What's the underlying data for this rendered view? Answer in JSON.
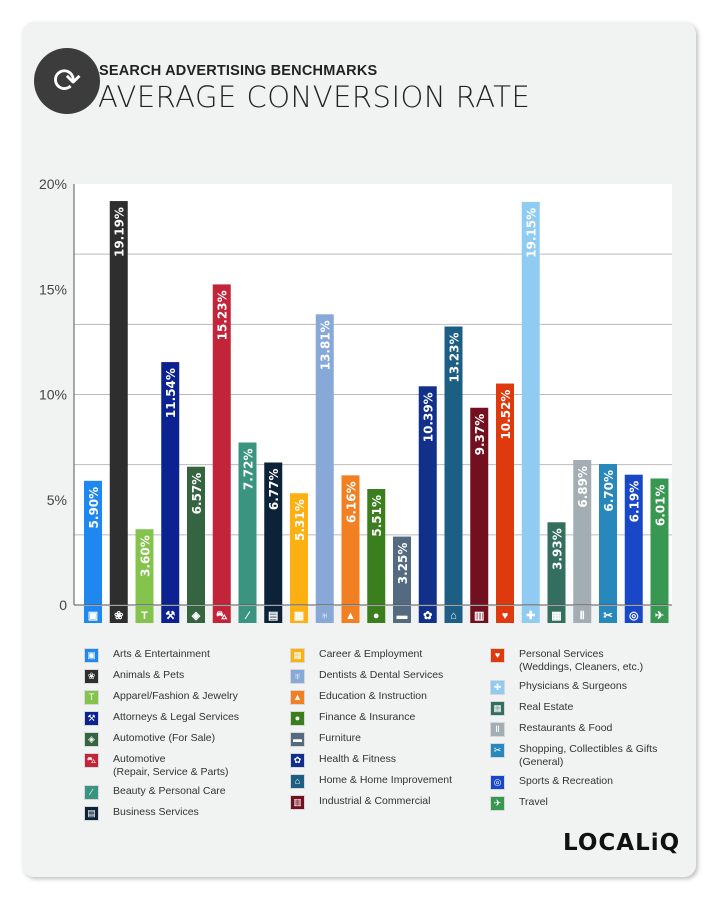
{
  "header": {
    "subtitle": "SEARCH ADVERTISING BENCHMARKS",
    "title": "AVERAGE CONVERSION RATE"
  },
  "brand": "LOCALiQ",
  "chart_data": {
    "type": "bar",
    "title": "AVERAGE CONVERSION RATE",
    "ylabel": "",
    "xlabel": "",
    "ylim": [
      0,
      20
    ],
    "yticks": [
      0,
      5,
      10,
      15,
      20
    ],
    "ytick_labels": [
      "0",
      "5%",
      "10%",
      "15%",
      "20%"
    ],
    "grid": true,
    "categories": [
      "Arts & Entertainment",
      "Animals & Pets",
      "Apparel/Fashion & Jewelry",
      "Attorneys & Legal Services",
      "Automotive (For Sale)",
      "Automotive (Repair, Service & Parts)",
      "Beauty & Personal Care",
      "Business Services",
      "Career & Employment",
      "Dentists & Dental Services",
      "Education & Instruction",
      "Finance & Insurance",
      "Furniture",
      "Health & Fitness",
      "Home & Home Improvement",
      "Industrial & Commercial",
      "Personal Services (Weddings, Cleaners, etc.)",
      "Physicians & Surgeons",
      "Real Estate",
      "Restaurants & Food",
      "Shopping, Collectibles & Gifts (General)",
      "Sports & Recreation",
      "Travel"
    ],
    "values": [
      5.9,
      19.19,
      3.6,
      11.54,
      6.57,
      15.23,
      7.72,
      6.77,
      5.31,
      13.81,
      6.16,
      5.51,
      3.25,
      10.39,
      13.23,
      9.37,
      10.52,
      19.15,
      3.93,
      6.89,
      6.7,
      6.19,
      6.01
    ],
    "value_labels": [
      "5.90%",
      "19.19%",
      "3.60%",
      "11.54%",
      "6.57%",
      "15.23%",
      "7.72%",
      "6.77%",
      "5.31%",
      "13.81%",
      "6.16%",
      "5.51%",
      "3.25%",
      "10.39%",
      "13.23%",
      "9.37%",
      "10.52%",
      "19.15%",
      "3.93%",
      "6.89%",
      "6.70%",
      "6.19%",
      "6.01%"
    ],
    "colors": [
      "#1e88f0",
      "#2e2e2e",
      "#84c44c",
      "#0c2290",
      "#356440",
      "#c2253a",
      "#3a9480",
      "#0b2238",
      "#fcb012",
      "#88a8d8",
      "#f28022",
      "#3a7e1e",
      "#546a80",
      "#10308a",
      "#1c5e84",
      "#721020",
      "#de3a0e",
      "#90cbf2",
      "#336e5e",
      "#a2aeb4",
      "#2888bc",
      "#1848c8",
      "#389852"
    ],
    "icons": [
      "image-icon",
      "paw-icon",
      "shirt-icon",
      "gavel-icon",
      "tag-icon",
      "car-icon",
      "brush-icon",
      "newspaper-icon",
      "briefcase-icon",
      "tooth-icon",
      "graduation-cap-icon",
      "piggy-bank-icon",
      "sofa-icon",
      "apple-icon",
      "home-icon",
      "factory-icon",
      "hand-heart-icon",
      "medical-cross-icon",
      "storefront-icon",
      "fork-knife-icon",
      "gift-bow-icon",
      "ball-icon",
      "airplane-icon"
    ],
    "glyphs": [
      "▣",
      "❀",
      "T",
      "⚒",
      "◈",
      "⛍",
      "∕",
      "▤",
      "▦",
      "♅",
      "▲",
      "●",
      "▬",
      "✿",
      "⌂",
      "▥",
      "♥",
      "✚",
      "▦",
      "Ⅱ",
      "✂",
      "◎",
      "✈"
    ],
    "legend_placement": "bottom"
  },
  "legend": {
    "columns": [
      [
        0,
        1,
        2,
        3,
        4,
        5,
        6,
        7
      ],
      [
        8,
        9,
        10,
        11,
        12,
        13,
        14,
        15
      ],
      [
        16,
        17,
        18,
        19,
        20,
        21,
        22
      ]
    ],
    "labels": [
      "Arts & Entertainment",
      "Animals & Pets",
      "Apparel/Fashion & Jewelry",
      "Attorneys & Legal Services",
      "Automotive (For Sale)",
      "Automotive\n(Repair, Service & Parts)",
      "Beauty & Personal Care",
      "Business Services",
      "Career & Employment",
      "Dentists & Dental Services",
      "Education & Instruction",
      "Finance & Insurance",
      "Furniture",
      "Health & Fitness",
      "Home & Home Improvement",
      "Industrial & Commercial",
      "Personal Services\n(Weddings, Cleaners, etc.)",
      "Physicians & Surgeons",
      "Real Estate",
      "Restaurants & Food",
      "Shopping, Collectibles & Gifts\n(General)",
      "Sports & Recreation",
      "Travel"
    ]
  }
}
